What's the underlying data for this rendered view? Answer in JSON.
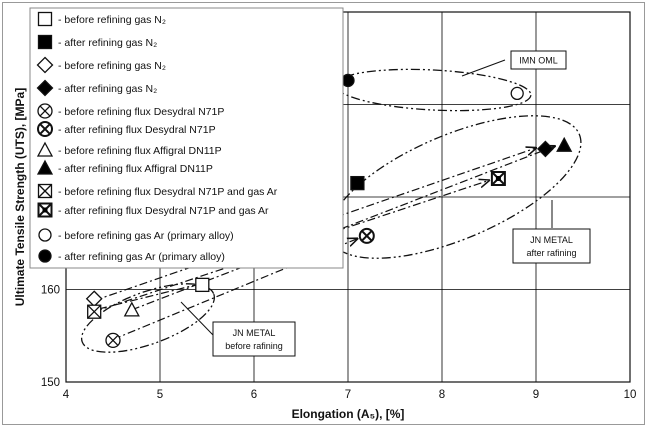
{
  "chart_data": {
    "type": "scatter",
    "title": "",
    "xlabel": "Elongation (A₅), [%]",
    "ylabel": "Ultimate Tensile Strength (UTS), [MPa]",
    "xlim": [
      4,
      10
    ],
    "ylim": [
      150,
      190
    ],
    "x_ticks": [
      "4",
      "5",
      "6",
      "7",
      "8",
      "9",
      "10"
    ],
    "y_ticks": [
      "150",
      "160"
    ],
    "grid": true,
    "legend_position": "top-left",
    "series": [
      {
        "name": "- before refining gas N₂",
        "marker": "open-square",
        "points": [
          [
            5.45,
            160.5
          ]
        ]
      },
      {
        "name": "- after refining gas N₂",
        "marker": "filled-square",
        "points": [
          [
            7.1,
            171.5
          ]
        ]
      },
      {
        "name": "- before refining gas N₂",
        "marker": "open-diamond",
        "points": [
          [
            4.3,
            159.0
          ]
        ]
      },
      {
        "name": "- after refining gas N₂",
        "marker": "filled-diamond",
        "points": [
          [
            9.1,
            175.2
          ]
        ]
      },
      {
        "name": "- before refining flux Desydral N71P",
        "marker": "circle-x-thin",
        "points": [
          [
            4.5,
            154.5
          ]
        ]
      },
      {
        "name": "- after refining flux Desydral N71P",
        "marker": "circle-x",
        "points": [
          [
            7.2,
            165.8
          ]
        ]
      },
      {
        "name": "- before refining flux Affigral DN11P",
        "marker": "open-triangle",
        "points": [
          [
            4.7,
            157.8
          ]
        ]
      },
      {
        "name": "- after refining flux Affigral DN11P",
        "marker": "filled-triangle",
        "points": [
          [
            9.3,
            175.6
          ]
        ]
      },
      {
        "name": "- before refining flux Desydral N71P and gas Ar",
        "marker": "square-x-thin",
        "points": [
          [
            4.3,
            157.6
          ]
        ]
      },
      {
        "name": "- after refining flux Desydral N71P and gas Ar",
        "marker": "square-x",
        "points": [
          [
            8.6,
            172.0
          ]
        ]
      },
      {
        "name": "- before refining gas Ar (primary alloy)",
        "marker": "open-circle",
        "points": [
          [
            8.8,
            181.2
          ]
        ]
      },
      {
        "name": "- after refining gas Ar (primary alloy)",
        "marker": "filled-circle",
        "points": [
          [
            7.0,
            182.6
          ]
        ]
      }
    ],
    "annotations": [
      {
        "text": [
          "IMN OML"
        ]
      },
      {
        "text": [
          "JN METAL",
          "after rafining"
        ]
      },
      {
        "text": [
          "JN METAL",
          "before rafining"
        ]
      }
    ]
  }
}
